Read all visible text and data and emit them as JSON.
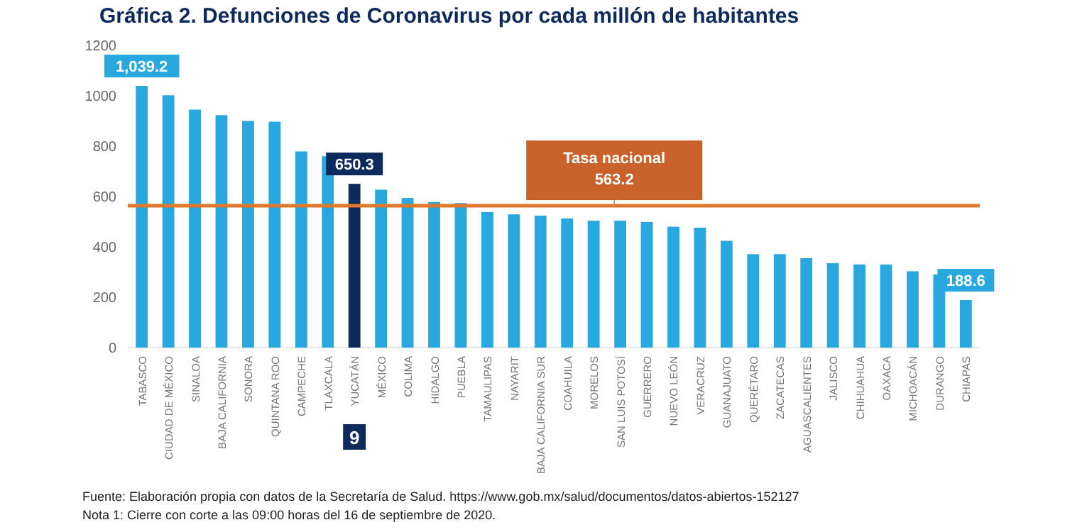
{
  "chart_data": {
    "type": "bar",
    "title": "Gráfica 2. Defunciones de Coronavirus por cada millón de habitantes",
    "categories": [
      "TABASCO",
      "CIUDAD DE MÉXICO",
      "SINALOA",
      "BAJA CALIFORNIA",
      "SONORA",
      "QUINTANA ROO",
      "CAMPECHE",
      "TLAXCALA",
      "YUCATÁN",
      "MÉXICO",
      "COLIMA",
      "HIDALGO",
      "PUEBLA",
      "TAMAULIPAS",
      "NAYARIT",
      "BAJA CALIFORNIA SUR",
      "COAHUILA",
      "MORELOS",
      "SAN LUIS POTOSÍ",
      "GUERRERO",
      "NUEVO LEÓN",
      "VERACRUZ",
      "GUANAJUATO",
      "QUERÉTARO",
      "ZACATECAS",
      "AGUASCALIENTES",
      "JALISCO",
      "CHIHUAHUA",
      "OAXACA",
      "MICHOACÁN",
      "DURANGO",
      "CHIAPAS"
    ],
    "values": [
      1039.2,
      1002,
      945,
      923,
      900,
      897,
      779,
      760,
      650.3,
      627,
      594,
      578,
      574,
      538,
      529,
      524,
      513,
      504,
      504,
      499,
      480,
      476,
      424,
      371,
      371,
      355,
      335,
      330,
      330,
      303,
      290,
      188.6
    ],
    "colors": [
      "#29a8e0",
      "#29a8e0",
      "#29a8e0",
      "#29a8e0",
      "#29a8e0",
      "#29a8e0",
      "#29a8e0",
      "#29a8e0",
      "#0d2a5c",
      "#29a8e0",
      "#29a8e0",
      "#29a8e0",
      "#29a8e0",
      "#29a8e0",
      "#29a8e0",
      "#29a8e0",
      "#29a8e0",
      "#29a8e0",
      "#29a8e0",
      "#29a8e0",
      "#29a8e0",
      "#29a8e0",
      "#29a8e0",
      "#29a8e0",
      "#29a8e0",
      "#29a8e0",
      "#29a8e0",
      "#29a8e0",
      "#29a8e0",
      "#29a8e0",
      "#29a8e0",
      "#29a8e0"
    ],
    "value_labels": [
      "1,039.2",
      null,
      null,
      null,
      null,
      null,
      null,
      null,
      "650.3",
      null,
      null,
      null,
      null,
      null,
      null,
      null,
      null,
      null,
      null,
      null,
      null,
      null,
      null,
      null,
      null,
      null,
      null,
      null,
      null,
      null,
      null,
      "188.6"
    ],
    "ylim": [
      0,
      1200
    ],
    "yticks": [
      0,
      200,
      400,
      600,
      800,
      1000,
      1200
    ],
    "grid": false,
    "ref_lines": [
      {
        "axis": "y",
        "value": 563.2,
        "label": "Tasa nacional\n563.2",
        "color": "#e0772a"
      }
    ],
    "annotations": [
      "9",
      "Fuente: Elaboración propia con datos de la Secretaría de Salud. https://www.gob.mx/salud/documentos/datos-abiertos-152127",
      "Nota 1: Cierre con corte a las 09:00 horas del 16 de septiembre de 2020."
    ]
  }
}
